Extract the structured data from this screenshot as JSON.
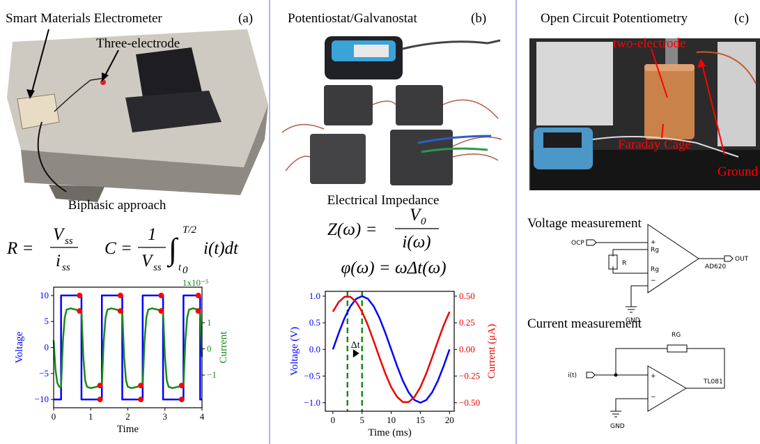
{
  "panel_a": {
    "title": "Smart Materials Electrometer",
    "label": "(a)",
    "photo_callout": "Three-electrode",
    "subtitle": "Biphasic approach",
    "equation_r": {
      "lhs": "R =",
      "num": "V",
      "num_sub": "ss",
      "den": "i",
      "den_sub": "ss"
    },
    "equation_c": {
      "lhs": "C =",
      "num": "1",
      "den": "V",
      "den_sub": "ss",
      "integral": "∫",
      "upper": "T/2",
      "lower": "t",
      "lower_sub": "0",
      "integrand": "i(t)dt"
    }
  },
  "panel_b": {
    "title": "Potentiostat/Galvanostat",
    "label": "(b)",
    "subtitle": "Electrical Impedance",
    "equation_z": {
      "lhs": "Z(ω) =",
      "num": "V",
      "num_sub": "0",
      "den": "i(ω)"
    },
    "equation_phi": "φ(ω) = ωΔt(ω)"
  },
  "panel_c": {
    "title": "Open Circuit Potentiometry",
    "label": "(c)",
    "photo_callouts": [
      "two-electrode",
      "Faraday Cage",
      "Ground"
    ],
    "voltage_circuit": {
      "title": "Voltage measurement",
      "input": "OCP",
      "plus": "+",
      "rg_top": "Rg",
      "resistor": "R",
      "rg_bottom": "Rg",
      "minus": "−",
      "chip": "AD620",
      "output": "OUT",
      "ground": "GND"
    },
    "current_circuit": {
      "title": "Current measurement",
      "input": "i(t)",
      "feedback": "RG",
      "plus": "+",
      "minus": "−",
      "chip": "TL081",
      "ground": "GND"
    }
  },
  "chart_data": [
    {
      "type": "line",
      "xlabel": "Time",
      "ylabel": "Voltage",
      "y2label": "Current",
      "y2_offset": "1x10⁻⁵",
      "ycolor": "#0000ff",
      "y2color": "#1a8a1a",
      "xlim": [
        0,
        4
      ],
      "xticks": [
        0,
        1,
        2,
        3,
        4
      ],
      "ylim": [
        -11.6,
        11.6
      ],
      "yticks": [
        {
          "value": -10,
          "label": "−10"
        },
        {
          "value": -5,
          "label": "−5"
        },
        0,
        5,
        10
      ],
      "y2lim": [
        -2.25,
        2.36
      ],
      "y2ticks": [
        {
          "value": -1,
          "label": "−1"
        },
        0,
        1
      ],
      "series": [
        {
          "type": "line",
          "color": "#0000ff",
          "axis": "y",
          "x": [
            0,
            0.2,
            0.2,
            0.75,
            0.75,
            1.3,
            1.3,
            1.85,
            1.85,
            2.4,
            2.4,
            2.95,
            2.95,
            3.5,
            3.5,
            3.95,
            3.95,
            4
          ],
          "values": [
            -10,
            -10,
            10,
            10,
            -10,
            -10,
            10,
            10,
            -10,
            -10,
            10,
            10,
            -10,
            -10,
            10,
            10,
            -10,
            -10
          ]
        },
        {
          "type": "line",
          "color": "#1a8a1a",
          "axis": "y2",
          "x": [
            0,
            0.05,
            0.1,
            0.15,
            0.2,
            0.25,
            0.3,
            0.35,
            0.45,
            0.6,
            0.75,
            0.8,
            0.85,
            0.9,
            1.0,
            1.15,
            1.3,
            1.35,
            1.4,
            1.45,
            1.55,
            1.7,
            1.85,
            1.9,
            1.95,
            2.0,
            2.1,
            2.25,
            2.4,
            2.45,
            2.5,
            2.55,
            2.65,
            2.8,
            2.95,
            3.0,
            3.05,
            3.1,
            3.2,
            3.35,
            3.5,
            3.55,
            3.6,
            3.65,
            3.75,
            3.9,
            3.95,
            4.0
          ],
          "values": [
            0.33,
            -0.8,
            -1.3,
            -1.45,
            -1.45,
            0.3,
            1.2,
            1.5,
            1.55,
            1.5,
            1.45,
            -0.3,
            -1.2,
            -1.45,
            -1.5,
            -1.45,
            -1.4,
            0.3,
            1.2,
            1.5,
            1.55,
            1.5,
            1.45,
            -0.3,
            -1.2,
            -1.45,
            -1.5,
            -1.45,
            -1.4,
            0.3,
            1.2,
            1.5,
            1.55,
            1.5,
            1.45,
            -0.3,
            -1.2,
            -1.45,
            -1.5,
            -1.45,
            -1.4,
            0.3,
            1.2,
            1.5,
            1.55,
            1.5,
            1.45,
            -0.3
          ]
        },
        {
          "type": "scatter",
          "color": "#ff0000",
          "axis": "y",
          "x": [
            0.7,
            1.25,
            1.8,
            2.35,
            2.9,
            3.45,
            3.9
          ],
          "values": [
            10,
            -10,
            10,
            -10,
            10,
            -10,
            10
          ]
        },
        {
          "type": "scatter",
          "color": "#ff0000",
          "axis": "y2",
          "x": [
            0.7,
            1.25,
            1.8,
            2.35,
            2.9,
            3.45,
            3.9
          ],
          "values": [
            1.45,
            -1.4,
            1.45,
            -1.4,
            1.45,
            -1.4,
            1.45
          ]
        }
      ]
    },
    {
      "type": "line",
      "xlabel": "Time (ms)",
      "ylabel": "Voltage (V)",
      "y2label": "Current (μA)",
      "annotation": "Δt",
      "ycolor": "#0000ff",
      "y2color": "#ee0000",
      "xlim": [
        -1.3,
        20.8
      ],
      "xticks": [
        0,
        5,
        10,
        15,
        20
      ],
      "ylim": [
        -1.16,
        1.09
      ],
      "yticks": [
        {
          "value": -1,
          "label": "−1.0"
        },
        {
          "value": -0.5,
          "label": "−0.5"
        },
        {
          "value": 0,
          "label": "0.0"
        },
        {
          "value": 0.5,
          "label": "0.5"
        },
        {
          "value": 1,
          "label": "1.0"
        }
      ],
      "y2lim": [
        -0.58,
        0.545
      ],
      "y2ticks": [
        {
          "value": -0.5,
          "label": "−0.50"
        },
        {
          "value": -0.25,
          "label": "−0.25"
        },
        {
          "value": 0,
          "label": "0.00"
        },
        {
          "value": 0.25,
          "label": "0.25"
        },
        {
          "value": 0.5,
          "label": "0.50"
        }
      ],
      "vlines": {
        "x": [
          2.5,
          5
        ],
        "color": "#1a8a1a"
      },
      "series": [
        {
          "type": "line",
          "color": "#0000ff",
          "axis": "y",
          "x": [
            0,
            1,
            2,
            3,
            4,
            5,
            6,
            7,
            8,
            9,
            10,
            11,
            12,
            13,
            14,
            15,
            16,
            17,
            18,
            19,
            20
          ],
          "values": [
            0,
            0.309,
            0.588,
            0.809,
            0.951,
            1,
            0.951,
            0.809,
            0.588,
            0.309,
            0,
            -0.309,
            -0.588,
            -0.809,
            -0.951,
            -1,
            -0.951,
            -0.809,
            -0.588,
            -0.309,
            0
          ]
        },
        {
          "type": "line",
          "color": "#ee0000",
          "axis": "y2",
          "x": [
            0,
            1,
            2,
            3,
            4,
            5,
            6,
            7,
            8,
            9,
            10,
            11,
            12,
            13,
            14,
            15,
            16,
            17,
            18,
            19,
            20
          ],
          "values": [
            0.354,
            0.445,
            0.494,
            0.494,
            0.445,
            0.354,
            0.227,
            0.078,
            -0.078,
            -0.227,
            -0.354,
            -0.445,
            -0.494,
            -0.494,
            -0.445,
            -0.354,
            -0.227,
            -0.078,
            0.078,
            0.227,
            0.354
          ]
        }
      ]
    }
  ]
}
